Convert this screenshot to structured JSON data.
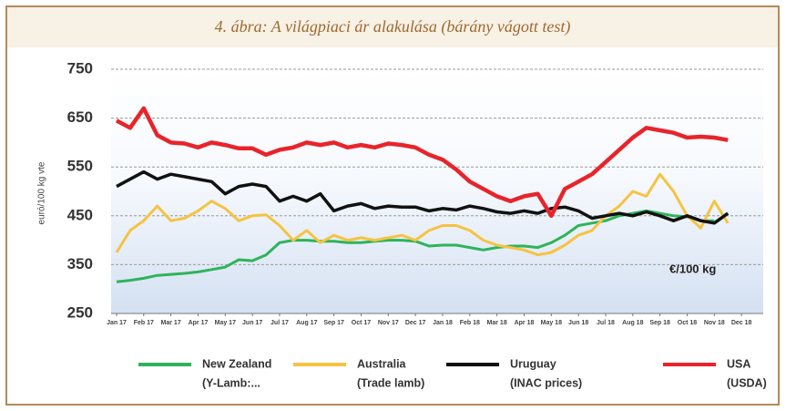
{
  "chart_data": {
    "type": "line",
    "title": "4. ábra: A világpiaci ár alakulása (bárány vágott test)",
    "ylabel": "euró/100 kg vte",
    "annotation": "€/100 kg",
    "x": [
      0,
      0.5,
      1,
      1.5,
      2,
      2.5,
      3,
      3.5,
      4,
      4.5,
      5,
      5.5,
      6,
      6.5,
      7,
      7.5,
      8,
      8.5,
      9,
      9.5,
      10,
      10.5,
      11,
      11.5,
      12,
      12.5,
      13,
      13.5,
      14,
      14.5,
      15,
      15.5,
      16,
      16.5,
      17,
      17.5,
      18,
      18.5,
      19,
      19.5,
      20,
      20.5,
      21,
      21.5,
      22,
      22.5
    ],
    "xlim": [
      -0.2,
      23.8
    ],
    "xticks": [
      {
        "value": 0,
        "label": "Jan 17"
      },
      {
        "value": 1,
        "label": "Feb 17"
      },
      {
        "value": 2,
        "label": "Mar 17"
      },
      {
        "value": 3,
        "label": "Apr 17"
      },
      {
        "value": 4,
        "label": "May 17"
      },
      {
        "value": 5,
        "label": "Jun 17"
      },
      {
        "value": 6,
        "label": "Jul 17"
      },
      {
        "value": 7,
        "label": "Aug 17"
      },
      {
        "value": 8,
        "label": "Sep 17"
      },
      {
        "value": 9,
        "label": "Oct 17"
      },
      {
        "value": 10,
        "label": "Nov 17"
      },
      {
        "value": 11,
        "label": "Dec 17"
      },
      {
        "value": 12,
        "label": "Jan 18"
      },
      {
        "value": 13,
        "label": "Feb 18"
      },
      {
        "value": 14,
        "label": "Mar 18"
      },
      {
        "value": 15,
        "label": "Apr 18"
      },
      {
        "value": 16,
        "label": "May 18"
      },
      {
        "value": 17,
        "label": "Jun 18"
      },
      {
        "value": 18,
        "label": "Jul 18"
      },
      {
        "value": 19,
        "label": "Aug 18"
      },
      {
        "value": 20,
        "label": "Sep 18"
      },
      {
        "value": 21,
        "label": "Oct 18"
      },
      {
        "value": 22,
        "label": "Nov 18"
      },
      {
        "value": 23,
        "label": "Dec 18"
      }
    ],
    "ylim": [
      250,
      750
    ],
    "yticks": [
      250,
      350,
      450,
      550,
      650,
      750
    ],
    "grid": true,
    "series": [
      {
        "name": "New Zealand",
        "sublabel": "(Y-Lamb:...",
        "color": "#2fb35b",
        "width": 3,
        "values": [
          315,
          318,
          322,
          328,
          330,
          332,
          335,
          340,
          345,
          360,
          358,
          370,
          395,
          400,
          400,
          398,
          398,
          395,
          395,
          398,
          400,
          400,
          398,
          388,
          390,
          390,
          385,
          380,
          385,
          388,
          388,
          385,
          395,
          410,
          430,
          435,
          440,
          450,
          455,
          460,
          455,
          450,
          448,
          440,
          440,
          null
        ]
      },
      {
        "name": "Australia",
        "sublabel": "(Trade lamb)",
        "color": "#f6c342",
        "width": 3,
        "values": [
          375,
          420,
          440,
          470,
          440,
          445,
          460,
          480,
          465,
          440,
          450,
          452,
          430,
          400,
          420,
          395,
          410,
          400,
          405,
          400,
          405,
          410,
          400,
          420,
          430,
          430,
          420,
          400,
          390,
          385,
          380,
          370,
          375,
          390,
          410,
          420,
          450,
          470,
          500,
          490,
          535,
          500,
          450,
          425,
          480,
          435
        ]
      },
      {
        "name": "Uruguay",
        "sublabel": "(INAC prices)",
        "color": "#111111",
        "width": 3.5,
        "values": [
          510,
          525,
          540,
          525,
          535,
          530,
          525,
          520,
          495,
          510,
          515,
          510,
          480,
          490,
          480,
          495,
          460,
          470,
          475,
          465,
          470,
          468,
          468,
          460,
          465,
          462,
          470,
          465,
          458,
          455,
          460,
          455,
          465,
          468,
          460,
          445,
          450,
          455,
          450,
          458,
          450,
          440,
          450,
          440,
          435,
          455
        ]
      },
      {
        "name": "USA",
        "sublabel": "(USDA)",
        "color": "#e8242a",
        "width": 4.5,
        "values": [
          645,
          630,
          670,
          615,
          600,
          598,
          590,
          600,
          595,
          588,
          588,
          575,
          585,
          590,
          600,
          595,
          600,
          590,
          595,
          590,
          598,
          595,
          590,
          575,
          565,
          545,
          520,
          505,
          490,
          480,
          490,
          495,
          450,
          505,
          520,
          535,
          560,
          585,
          610,
          630,
          625,
          620,
          610,
          612,
          610,
          605
        ]
      }
    ]
  }
}
